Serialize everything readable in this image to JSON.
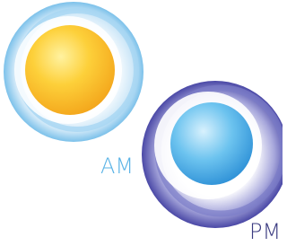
{
  "labels": {
    "am": "AM",
    "pm": "PM"
  }
}
